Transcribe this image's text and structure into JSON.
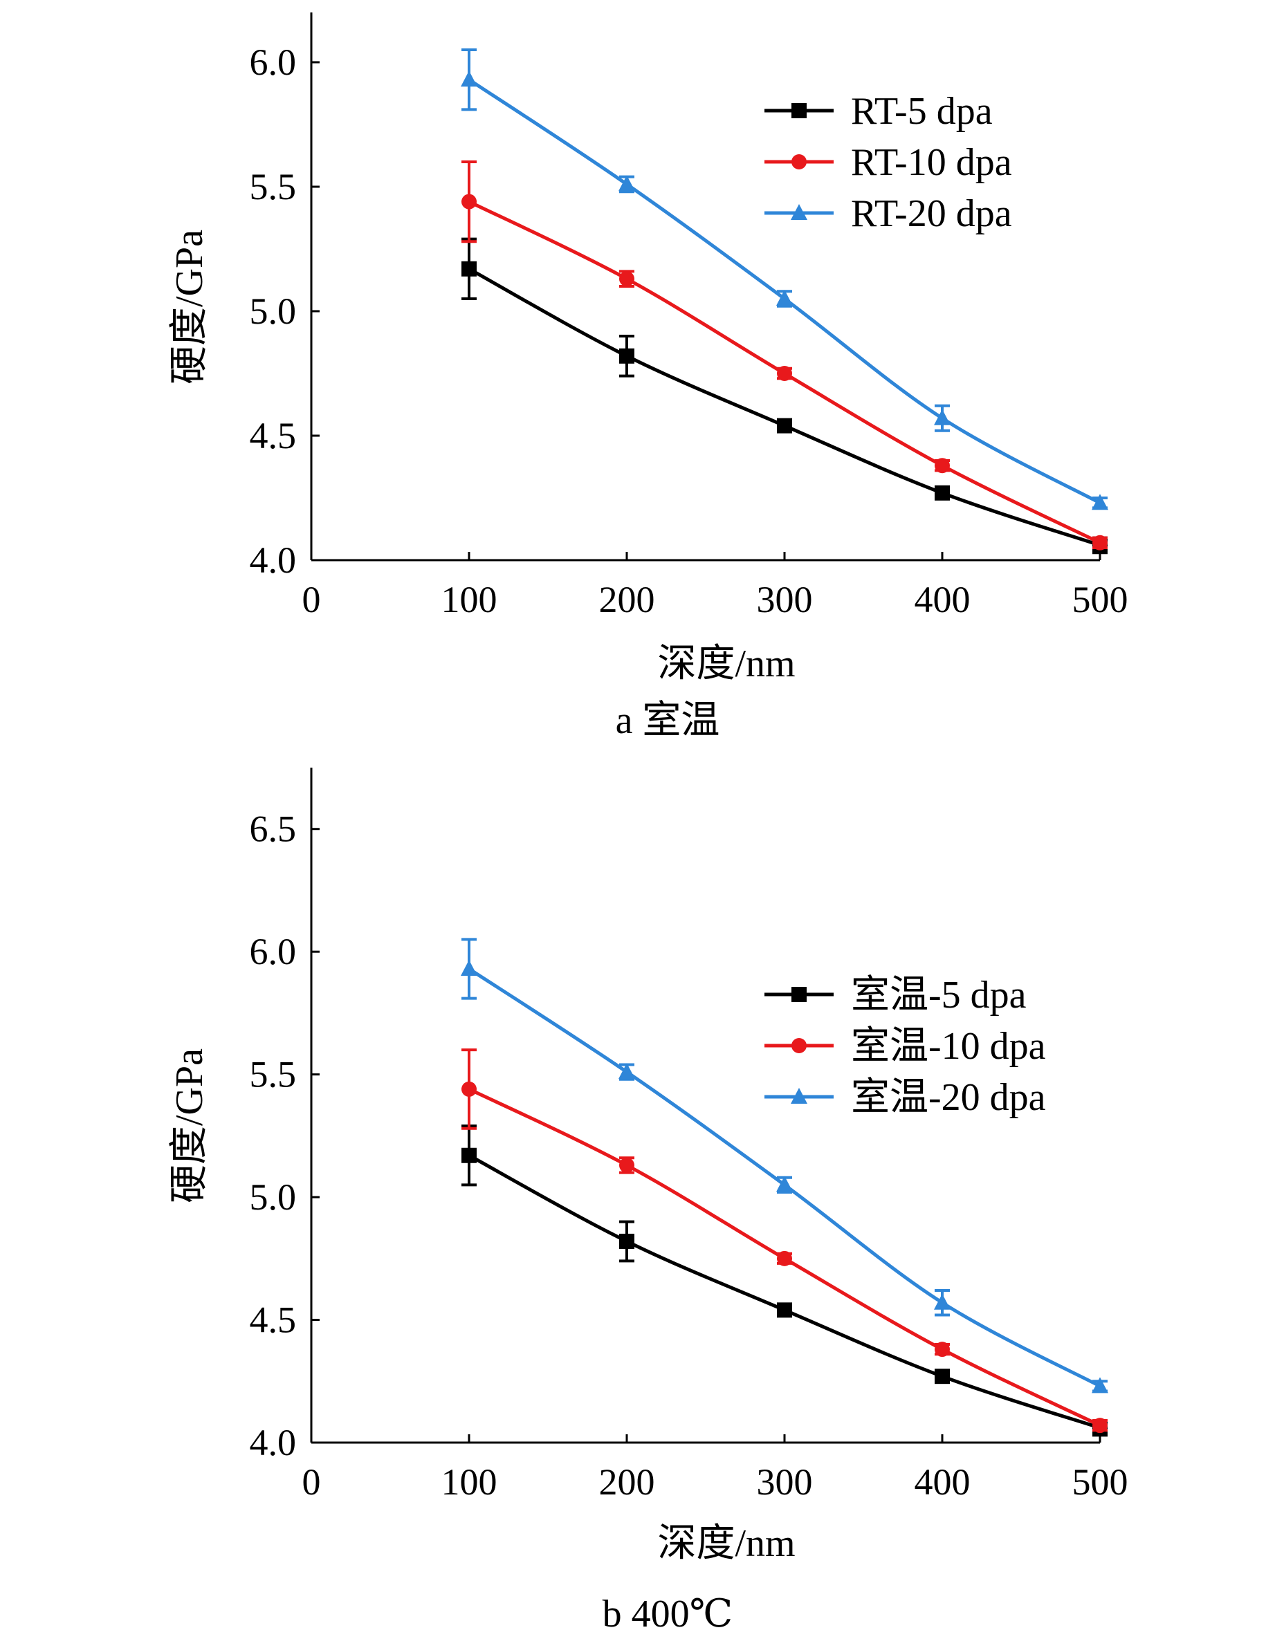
{
  "chart_data": [
    {
      "type": "line",
      "caption": "a  室温",
      "xlabel": "深度/nm",
      "ylabel": "硬度/GPa",
      "xlim": [
        0,
        500
      ],
      "ylim": [
        4.0,
        6.2
      ],
      "xticks": [
        0,
        100,
        200,
        300,
        400,
        500
      ],
      "yticks": [
        4.0,
        4.5,
        5.0,
        5.5,
        6.0
      ],
      "xtick_labels": [
        "0",
        "100",
        "200",
        "300",
        "400",
        "500"
      ],
      "ytick_labels": [
        "4.0",
        "4.5",
        "5.0",
        "5.5",
        "6.0"
      ],
      "legend_position": "top-right",
      "grid": false,
      "x": [
        100,
        200,
        300,
        400,
        500
      ],
      "series": [
        {
          "name": "RT-5 dpa",
          "color": "#000000",
          "marker": "square",
          "values": [
            5.17,
            4.82,
            4.54,
            4.27,
            4.06
          ],
          "errors": [
            0.12,
            0.08,
            0.02,
            0.02,
            0.03
          ]
        },
        {
          "name": "RT-10 dpa",
          "color": "#e8191c",
          "marker": "circle",
          "values": [
            5.44,
            5.13,
            4.75,
            4.38,
            4.07
          ],
          "errors": [
            0.16,
            0.03,
            0.02,
            0.02,
            0.02
          ]
        },
        {
          "name": "RT-20 dpa",
          "color": "#2f86d8",
          "marker": "triangle",
          "values": [
            5.93,
            5.51,
            5.05,
            4.57,
            4.23
          ],
          "errors": [
            0.12,
            0.03,
            0.03,
            0.05,
            0.02
          ]
        }
      ]
    },
    {
      "type": "line",
      "caption": "b  400℃",
      "xlabel": "深度/nm",
      "ylabel": "硬度/GPa",
      "xlim": [
        0,
        500
      ],
      "ylim": [
        4.0,
        6.75
      ],
      "xticks": [
        0,
        100,
        200,
        300,
        400,
        500
      ],
      "yticks": [
        4.0,
        4.5,
        5.0,
        5.5,
        6.0,
        6.5
      ],
      "xtick_labels": [
        "0",
        "100",
        "200",
        "300",
        "400",
        "500"
      ],
      "ytick_labels": [
        "4.0",
        "4.5",
        "5.0",
        "5.5",
        "6.0",
        "6.5"
      ],
      "legend_position": "right",
      "grid": false,
      "x": [
        100,
        200,
        300,
        400,
        500
      ],
      "series": [
        {
          "name": "室温-5 dpa",
          "color": "#000000",
          "marker": "square",
          "values": [
            5.17,
            4.82,
            4.54,
            4.27,
            4.06
          ],
          "errors": [
            0.12,
            0.08,
            0.02,
            0.02,
            0.03
          ]
        },
        {
          "name": "室温-10 dpa",
          "color": "#e8191c",
          "marker": "circle",
          "values": [
            5.44,
            5.13,
            4.75,
            4.38,
            4.07
          ],
          "errors": [
            0.16,
            0.03,
            0.02,
            0.02,
            0.02
          ]
        },
        {
          "name": "室温-20 dpa",
          "color": "#2f86d8",
          "marker": "triangle",
          "values": [
            5.93,
            5.51,
            5.05,
            4.57,
            4.23
          ],
          "errors": [
            0.12,
            0.03,
            0.03,
            0.05,
            0.02
          ]
        }
      ]
    }
  ]
}
